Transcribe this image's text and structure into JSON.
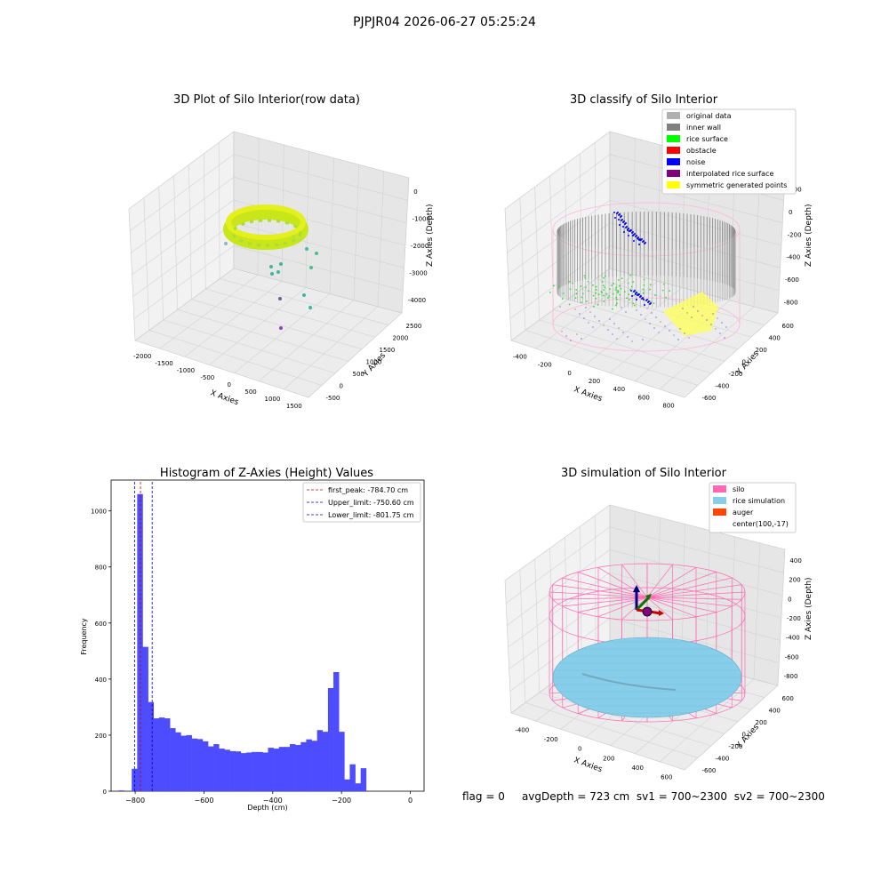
{
  "suptitle": "PJPJR04 2026-06-27 05:25:24",
  "status": {
    "flag": "flag = 0",
    "avg_depth": "avgDepth = 723 cm",
    "sv1": "sv1 = 700~2300",
    "sv2": "sv2 = 700~2300"
  },
  "colors": {
    "hist_bar": "#4d4dff",
    "first_peak": "#cc0000",
    "limit": "#0000cc",
    "silo": "#ff69b4",
    "rice": "#87ceeb",
    "auger": "#ff4500",
    "inner_wall": "#808080",
    "rice_surface": "#00ff00",
    "obstacle": "#ff0000",
    "noise": "#0000ff",
    "interpolated": "#800080",
    "symmetric": "#ffff00",
    "original": "#b0b0b0"
  },
  "chart_data": [
    {
      "type": "scatter",
      "projection": "3d",
      "title": "3D Plot of Silo Interior(row data)",
      "xlabel": "X Axies",
      "ylabel": "Y Axies",
      "zlabel": "Z Axies (Depth)",
      "x_ticks": [
        "-2000",
        "-1500",
        "-1000",
        "-500",
        "0",
        "500",
        "1000",
        "1500"
      ],
      "y_ticks": [
        "-500",
        "0",
        "500",
        "1000",
        "1500",
        "2000",
        "2500"
      ],
      "z_ticks": [
        "0",
        "-1000",
        "-2000",
        "-3000",
        "-4000"
      ],
      "grid": true
    },
    {
      "type": "scatter",
      "projection": "3d",
      "title": "3D classify of Silo Interior",
      "xlabel": "X Axies",
      "ylabel": "Y Axies",
      "zlabel": "Z Axies (Depth)",
      "x_ticks": [
        "-400",
        "-200",
        "0",
        "200",
        "400",
        "600",
        "800"
      ],
      "y_ticks": [
        "-600",
        "-400",
        "-200",
        "0",
        "200",
        "400",
        "600"
      ],
      "z_ticks": [
        "200",
        "0",
        "-200",
        "-400",
        "-600",
        "-800"
      ],
      "legend": [
        "original data",
        "inner wall",
        "rice surface",
        "obstacle",
        "noise",
        "interpolated rice surface",
        "symmetric generated points"
      ],
      "legend_placement": "top-right",
      "grid": true
    },
    {
      "type": "bar",
      "title": "Histogram of Z-Axies (Height) Values",
      "xlabel": "Depth (cm)",
      "ylabel": "Frequency",
      "xlim": [
        -870,
        40
      ],
      "ylim": [
        0,
        1110
      ],
      "x_ticks": [
        "−800",
        "−600",
        "−400",
        "−200",
        "0"
      ],
      "y_ticks": [
        "0",
        "200",
        "400",
        "600",
        "800",
        "1000"
      ],
      "bin_start": -810,
      "bin_width": 15.85,
      "values": [
        80,
        1060,
        515,
        318,
        260,
        263,
        260,
        225,
        210,
        198,
        200,
        188,
        186,
        178,
        160,
        168,
        152,
        148,
        143,
        142,
        136,
        138,
        140,
        140,
        138,
        155,
        152,
        158,
        158,
        168,
        165,
        175,
        185,
        180,
        218,
        212,
        368,
        425,
        212,
        42,
        96,
        28,
        82
      ],
      "lines": [
        {
          "name": "first_peak: -784.70 cm",
          "x": -784.7,
          "style": "red"
        },
        {
          "name": "Upper_limit: -750.60 cm",
          "x": -750.6,
          "style": "blue"
        },
        {
          "name": "Lower_limit: -801.75 cm",
          "x": -801.75,
          "style": "blue"
        }
      ],
      "legend_placement": "top-right",
      "grid": false
    },
    {
      "type": "surface",
      "projection": "3d",
      "title": "3D simulation of Silo Interior",
      "xlabel": "X Axies",
      "ylabel": "Y Axies",
      "zlabel": "Z Axies (Depth)",
      "x_ticks": [
        "-400",
        "-200",
        "0",
        "200",
        "400",
        "600"
      ],
      "y_ticks": [
        "-600",
        "-400",
        "-200",
        "0",
        "200",
        "400",
        "600"
      ],
      "z_ticks": [
        "400",
        "200",
        "0",
        "-200",
        "-400",
        "-600",
        "-800"
      ],
      "legend": [
        "silo",
        "rice simulation",
        "auger",
        "center(100,-17)"
      ],
      "legend_placement": "top-right",
      "grid": true
    }
  ]
}
